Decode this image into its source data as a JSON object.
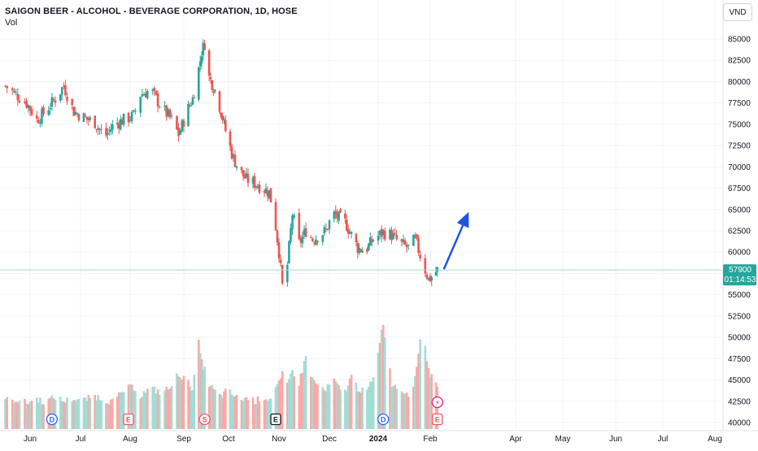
{
  "header": {
    "title": "SAIGON BEER - ALCOHOL - BEVERAGE CORPORATION, 1D, HOSE",
    "volume_label": "Vol",
    "currency": "VND"
  },
  "price_label": {
    "last_price": "57900",
    "countdown": "01:14:53",
    "color": "#26a69a"
  },
  "colors": {
    "up": "#26a69a",
    "down": "#ef5350",
    "up_volume": "#a3dcd3",
    "down_volume": "#f8a9a8",
    "arrow": "#1e53e5"
  },
  "event_markers": [
    {
      "symbol": "D",
      "date": "2023-06-14",
      "icon": "dividend-icon"
    },
    {
      "symbol": "E",
      "date": "2023-07-31",
      "icon": "earnings-icon"
    },
    {
      "symbol": "S",
      "date": "2023-09-15",
      "icon": "split-icon"
    },
    {
      "symbol": "E",
      "date": "2023-10-30",
      "icon": "earnings-icon"
    },
    {
      "symbol": "D",
      "date": "2024-01-04",
      "icon": "dividend-icon"
    },
    {
      "symbol": "E",
      "date": "2024-02-06",
      "icon": "earnings-icon"
    },
    {
      "symbol": "⚡",
      "date": "2024-02-06",
      "icon": "lightning-icon"
    }
  ],
  "chart_data": {
    "type": "candlestick",
    "title": "SAIGON BEER - ALCOHOL - BEVERAGE CORPORATION, 1D, HOSE",
    "x_ticks": [
      "Jun",
      "Jul",
      "Aug",
      "Sep",
      "Oct",
      "Nov",
      "Dec",
      "2024",
      "Feb",
      "Apr",
      "May",
      "Jun",
      "Jul",
      "Aug"
    ],
    "y_ticks": [
      40000,
      42500,
      45000,
      47500,
      50000,
      52500,
      55000,
      57500,
      60000,
      62500,
      65000,
      67500,
      70000,
      72500,
      75000,
      77500,
      80000,
      82500,
      85000
    ],
    "ylim": [
      40000,
      86600
    ],
    "last_price": 57900,
    "close_series": [
      [
        "2023-05-18",
        79500
      ],
      [
        "2023-05-24",
        78500
      ],
      [
        "2023-05-30",
        77500
      ],
      [
        "2023-06-05",
        75500
      ],
      [
        "2023-06-10",
        76500
      ],
      [
        "2023-06-16",
        78000
      ],
      [
        "2023-06-21",
        79500
      ],
      [
        "2023-06-27",
        76500
      ],
      [
        "2023-07-03",
        75800
      ],
      [
        "2023-07-10",
        75200
      ],
      [
        "2023-07-16",
        73500
      ],
      [
        "2023-07-22",
        75000
      ],
      [
        "2023-07-28",
        75500
      ],
      [
        "2023-08-03",
        76000
      ],
      [
        "2023-08-07",
        78500
      ],
      [
        "2023-08-13",
        79000
      ],
      [
        "2023-08-19",
        77000
      ],
      [
        "2023-08-25",
        75500
      ],
      [
        "2023-08-29",
        73800
      ],
      [
        "2023-09-03",
        76500
      ],
      [
        "2023-09-07",
        78000
      ],
      [
        "2023-09-11",
        81500
      ],
      [
        "2023-09-13",
        83500
      ],
      [
        "2023-09-15",
        84500
      ],
      [
        "2023-09-18",
        80500
      ],
      [
        "2023-09-22",
        79000
      ],
      [
        "2023-09-26",
        76500
      ],
      [
        "2023-09-30",
        73500
      ],
      [
        "2023-10-04",
        71000
      ],
      [
        "2023-10-08",
        69500
      ],
      [
        "2023-10-12",
        68500
      ],
      [
        "2023-10-18",
        68000
      ],
      [
        "2023-10-22",
        67500
      ],
      [
        "2023-10-26",
        67000
      ],
      [
        "2023-10-29",
        64500
      ],
      [
        "2023-11-01",
        60000
      ],
      [
        "2023-11-03",
        56000
      ],
      [
        "2023-11-06",
        58500
      ],
      [
        "2023-11-09",
        64500
      ],
      [
        "2023-11-13",
        61000
      ],
      [
        "2023-11-17",
        62500
      ],
      [
        "2023-11-21",
        61500
      ],
      [
        "2023-11-25",
        62000
      ],
      [
        "2023-11-29",
        62500
      ],
      [
        "2023-12-03",
        64500
      ],
      [
        "2023-12-07",
        64000
      ],
      [
        "2023-12-11",
        63500
      ],
      [
        "2023-12-15",
        62000
      ],
      [
        "2023-12-19",
        60500
      ],
      [
        "2023-12-24",
        60200
      ],
      [
        "2023-12-29",
        61500
      ],
      [
        "2024-01-04",
        62300
      ],
      [
        "2024-01-09",
        62000
      ],
      [
        "2024-01-14",
        61000
      ],
      [
        "2024-01-19",
        60500
      ],
      [
        "2024-01-23",
        61500
      ],
      [
        "2024-01-27",
        59000
      ],
      [
        "2024-01-31",
        56800
      ],
      [
        "2024-02-03",
        57200
      ],
      [
        "2024-02-06",
        57900
      ]
    ],
    "volume_series": [
      [
        "2023-05-18",
        42600
      ],
      [
        "2023-05-24",
        42700
      ],
      [
        "2023-05-30",
        42300
      ],
      [
        "2023-06-05",
        42800
      ],
      [
        "2023-06-10",
        42400
      ],
      [
        "2023-06-16",
        43000
      ],
      [
        "2023-06-21",
        42500
      ],
      [
        "2023-06-27",
        42800
      ],
      [
        "2023-07-03",
        42600
      ],
      [
        "2023-07-10",
        43100
      ],
      [
        "2023-07-16",
        42700
      ],
      [
        "2023-07-22",
        42400
      ],
      [
        "2023-07-28",
        43800
      ],
      [
        "2023-08-03",
        44200
      ],
      [
        "2023-08-07",
        43200
      ],
      [
        "2023-08-13",
        44000
      ],
      [
        "2023-08-19",
        43500
      ],
      [
        "2023-08-25",
        44200
      ],
      [
        "2023-08-29",
        45800
      ],
      [
        "2023-09-03",
        44800
      ],
      [
        "2023-09-07",
        44000
      ],
      [
        "2023-09-11",
        49300
      ],
      [
        "2023-09-13",
        47000
      ],
      [
        "2023-09-15",
        46200
      ],
      [
        "2023-09-18",
        44500
      ],
      [
        "2023-09-22",
        43600
      ],
      [
        "2023-09-26",
        43000
      ],
      [
        "2023-09-30",
        43800
      ],
      [
        "2023-10-04",
        43200
      ],
      [
        "2023-10-08",
        42600
      ],
      [
        "2023-10-12",
        42900
      ],
      [
        "2023-10-18",
        42500
      ],
      [
        "2023-10-22",
        43100
      ],
      [
        "2023-10-26",
        42700
      ],
      [
        "2023-10-29",
        43900
      ],
      [
        "2023-11-01",
        44500
      ],
      [
        "2023-11-03",
        45600
      ],
      [
        "2023-11-06",
        44300
      ],
      [
        "2023-11-09",
        46200
      ],
      [
        "2023-11-13",
        44600
      ],
      [
        "2023-11-17",
        47800
      ],
      [
        "2023-11-21",
        45000
      ],
      [
        "2023-11-25",
        44200
      ],
      [
        "2023-11-29",
        43700
      ],
      [
        "2023-12-03",
        45200
      ],
      [
        "2023-12-07",
        44000
      ],
      [
        "2023-12-11",
        43600
      ],
      [
        "2023-12-15",
        45400
      ],
      [
        "2023-12-19",
        44100
      ],
      [
        "2023-12-24",
        43400
      ],
      [
        "2023-12-29",
        45100
      ],
      [
        "2024-01-04",
        51800
      ],
      [
        "2024-01-09",
        44600
      ],
      [
        "2024-01-14",
        43900
      ],
      [
        "2024-01-19",
        43500
      ],
      [
        "2024-01-23",
        45000
      ],
      [
        "2024-01-27",
        51600
      ],
      [
        "2024-01-31",
        46200
      ],
      [
        "2024-02-03",
        44800
      ],
      [
        "2024-02-06",
        44600
      ]
    ],
    "projection_arrow": {
      "from": [
        "2024-02-06",
        58000
      ],
      "to": [
        "2024-02-28",
        64700
      ]
    },
    "grid": true,
    "legend": "none"
  }
}
